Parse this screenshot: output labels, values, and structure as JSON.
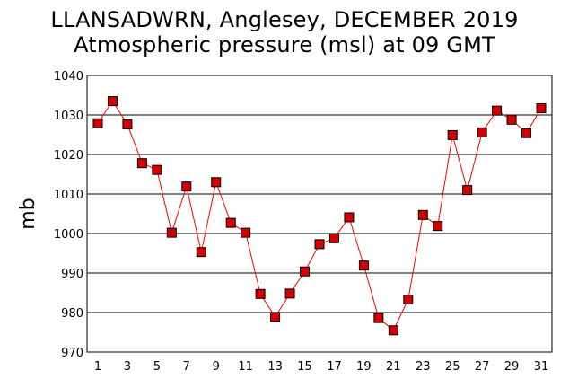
{
  "title_line1": "LLANSADWRN, Anglesey,  DECEMBER 2019",
  "title_line2": "Atmospheric pressure  (msl) at 09 GMT",
  "chart_data": {
    "type": "line",
    "title": "LLANSADWRN, Anglesey,  DECEMBER 2019 Atmospheric pressure  (msl) at 09 GMT",
    "xlabel": "",
    "ylabel": "mb",
    "xlim": [
      1,
      31
    ],
    "ylim": [
      970,
      1040
    ],
    "y_ticks": [
      970,
      980,
      990,
      1000,
      1010,
      1020,
      1030,
      1040
    ],
    "x_ticks": [
      1,
      3,
      5,
      7,
      9,
      11,
      13,
      15,
      17,
      19,
      21,
      23,
      25,
      27,
      29,
      31
    ],
    "grid": "horizontal",
    "line_color": "#ff0000",
    "marker_color": "#d40000",
    "x": [
      1,
      2,
      3,
      4,
      5,
      6,
      7,
      8,
      9,
      10,
      11,
      12,
      13,
      14,
      15,
      16,
      17,
      18,
      19,
      20,
      21,
      22,
      23,
      24,
      25,
      26,
      27,
      28,
      29,
      30,
      31
    ],
    "values": [
      1027.9,
      1033.5,
      1027.6,
      1017.8,
      1016.1,
      1000.2,
      1011.9,
      995.3,
      1013.0,
      1002.7,
      1000.2,
      984.7,
      978.9,
      984.8,
      990.4,
      997.3,
      998.8,
      1004.1,
      991.9,
      978.6,
      975.5,
      983.3,
      1004.7,
      1001.9,
      1024.9,
      1011.0,
      1025.6,
      1031.1,
      1028.8,
      1025.4,
      1031.7
    ]
  }
}
